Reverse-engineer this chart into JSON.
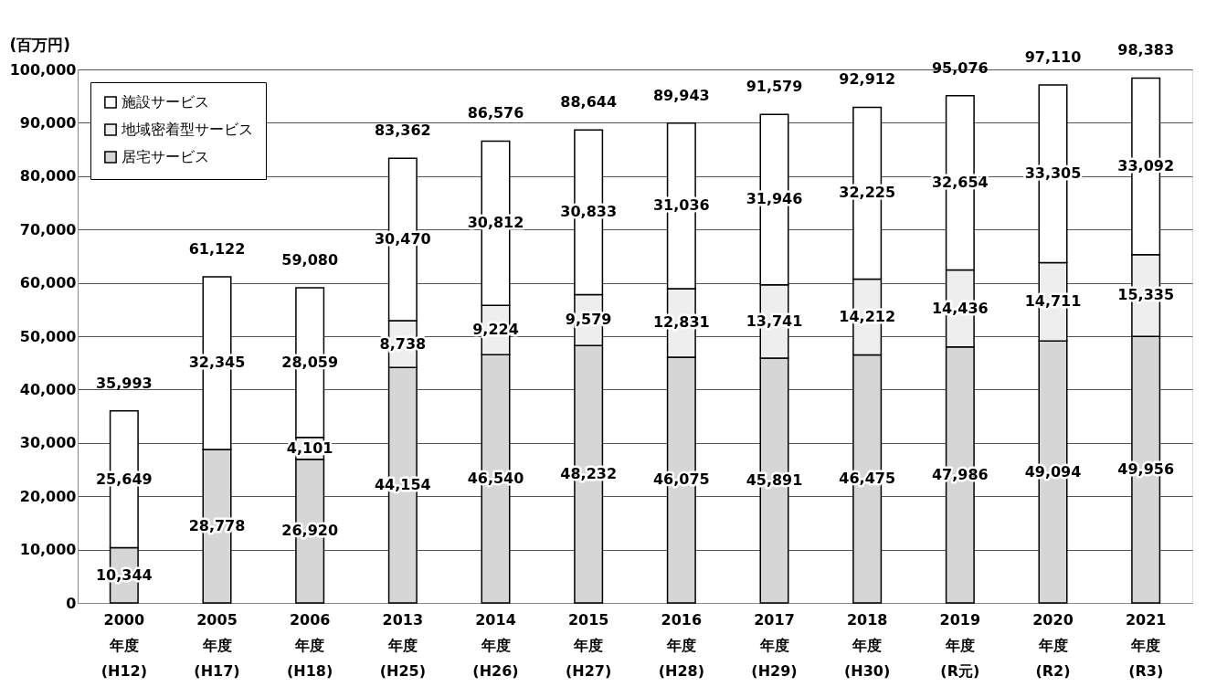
{
  "chart_data": {
    "type": "bar",
    "stacked": true,
    "ylabel": "(百万円)",
    "categories": [
      "2000\n年度\n(H12)",
      "2005\n年度\n(H17)",
      "2006\n年度\n(H18)",
      "2013\n年度\n(H25)",
      "2014\n年度\n(H26)",
      "2015\n年度\n(H27)",
      "2016\n年度\n(H28)",
      "2017\n年度\n(H29)",
      "2018\n年度\n(H30)",
      "2019\n年度\n(R元)",
      "2020\n年度\n(R2)",
      "2021\n年度\n(R3)"
    ],
    "series": [
      {
        "name": "居宅サービス",
        "color": "#d6d6d6",
        "values": [
          10344,
          28778,
          26920,
          44154,
          46540,
          48232,
          46075,
          45891,
          46475,
          47986,
          49094,
          49956
        ],
        "value_labels": [
          "10,344",
          "28,778",
          "26,920",
          "44,154",
          "46,540",
          "48,232",
          "46,075",
          "45,891",
          "46,475",
          "47,986",
          "49,094",
          "49,956"
        ]
      },
      {
        "name": "地域密着型サービス",
        "color": "#eeeeee",
        "values": [
          null,
          null,
          4101,
          8738,
          9224,
          9579,
          12831,
          13741,
          14212,
          14436,
          14711,
          15335
        ],
        "value_labels": [
          null,
          null,
          "4,101",
          "8,738",
          "9,224",
          "9,579",
          "12,831",
          "13,741",
          "14,212",
          "14,436",
          "14,711",
          "15,335"
        ]
      },
      {
        "name": "施設サービス",
        "color": "#ffffff",
        "values": [
          25649,
          32345,
          28059,
          30470,
          30812,
          30833,
          31036,
          31946,
          32225,
          32654,
          33305,
          33092
        ],
        "value_labels": [
          "25,649",
          "32,345",
          "28,059",
          "30,470",
          "30,812",
          "30,833",
          "31,036",
          "31,946",
          "32,225",
          "32,654",
          "33,305",
          "33,092"
        ]
      }
    ],
    "totals": [
      "35,993",
      "61,122",
      "59,080",
      "83,362",
      "86,576",
      "88,644",
      "89,943",
      "91,579",
      "92,912",
      "95,076",
      "97,110",
      "98,383"
    ],
    "ylim": [
      0,
      100000
    ],
    "yticks": [
      0,
      {
        "value": 10000,
        "label": "10,000"
      },
      {
        "value": 20000,
        "label": "20,000"
      },
      {
        "value": 30000,
        "label": "30,000"
      },
      {
        "value": 40000,
        "label": "40,000"
      },
      {
        "value": 50000,
        "label": "50,000"
      },
      {
        "value": 60000,
        "label": "60,000"
      },
      {
        "value": 70000,
        "label": "70,000"
      },
      {
        "value": 80000,
        "label": "80,000"
      },
      {
        "value": 90000,
        "label": "90,000"
      },
      {
        "value": 100000,
        "label": "100,000"
      }
    ],
    "grid": "y",
    "legend": "top left"
  }
}
